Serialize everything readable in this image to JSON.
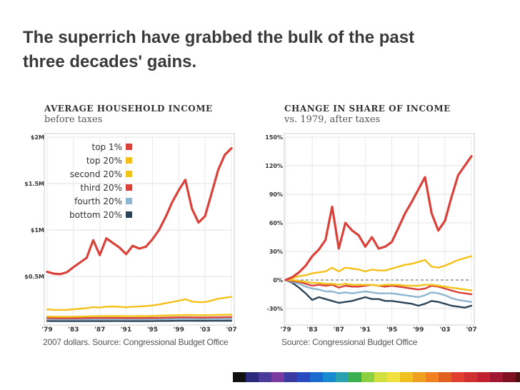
{
  "slide": {
    "title_line1": "The superrich have grabbed the bulk of the past",
    "title_line2": "three decades' gains."
  },
  "chart_data": [
    {
      "type": "line",
      "title": "AVERAGE HOUSEHOLD INCOME",
      "subtitle": "before taxes",
      "source": "2007 dollars. Source: Congressional Budget Office",
      "xlim": [
        1979,
        2007
      ],
      "ylim": [
        0,
        2000000
      ],
      "yticks": [
        {
          "value": 2000000,
          "label": "$2M"
        },
        {
          "value": 1500000,
          "label": "$1.5M"
        },
        {
          "value": 1000000,
          "label": "$1M"
        },
        {
          "value": 500000,
          "label": "$0.5M"
        }
      ],
      "xticks": [
        {
          "value": 1979,
          "label": "'79"
        },
        {
          "value": 1983,
          "label": "'83"
        },
        {
          "value": 1987,
          "label": "'87"
        },
        {
          "value": 1991,
          "label": "'91"
        },
        {
          "value": 1995,
          "label": "'95"
        },
        {
          "value": 1999,
          "label": "'99"
        },
        {
          "value": 2003,
          "label": "'03"
        },
        {
          "value": 2007,
          "label": "'07"
        }
      ],
      "grid": true,
      "legend_position": "top-center",
      "x": [
        1979,
        1980,
        1981,
        1982,
        1983,
        1984,
        1985,
        1986,
        1987,
        1988,
        1989,
        1990,
        1991,
        1992,
        1993,
        1994,
        1995,
        1996,
        1997,
        1998,
        1999,
        2000,
        2001,
        2002,
        2003,
        2004,
        2005,
        2006,
        2007
      ],
      "series": [
        {
          "name": "top 1%",
          "color": "#d9423a",
          "values": [
            550000,
            530000,
            525000,
            545000,
            600000,
            650000,
            700000,
            890000,
            730000,
            910000,
            860000,
            810000,
            740000,
            830000,
            800000,
            820000,
            900000,
            1000000,
            1140000,
            1300000,
            1430000,
            1540000,
            1230000,
            1080000,
            1150000,
            1400000,
            1650000,
            1810000,
            1880000
          ]
        },
        {
          "name": "top 20%",
          "color": "#f5c019",
          "values": [
            145000,
            140000,
            139000,
            140000,
            146000,
            152000,
            158000,
            170000,
            165000,
            175000,
            177000,
            172000,
            168000,
            174000,
            176000,
            180000,
            188000,
            198000,
            212000,
            225000,
            238000,
            255000,
            230000,
            222000,
            225000,
            240000,
            260000,
            270000,
            280000
          ]
        },
        {
          "name": "second 20%",
          "color": "#f0c419",
          "values": [
            68000,
            67000,
            66000,
            66000,
            67000,
            68000,
            70000,
            72000,
            72000,
            73000,
            74000,
            73000,
            72000,
            72000,
            73000,
            74000,
            75000,
            77000,
            79000,
            81000,
            83000,
            85000,
            84000,
            83000,
            83000,
            84000,
            86000,
            87000,
            88000
          ]
        },
        {
          "name": "third 20%",
          "color": "#d9423a",
          "values": [
            52000,
            51000,
            50000,
            50000,
            50000,
            51000,
            52000,
            53000,
            53000,
            54000,
            54000,
            53000,
            52000,
            52000,
            52000,
            53000,
            54000,
            55000,
            56000,
            58000,
            59000,
            60000,
            59000,
            58000,
            58000,
            59000,
            60000,
            61000,
            62000
          ]
        },
        {
          "name": "fourth 20%",
          "color": "#8fb6d0",
          "values": [
            38000,
            37000,
            36000,
            36000,
            36000,
            37000,
            37000,
            38000,
            38000,
            38000,
            38000,
            38000,
            37000,
            37000,
            37000,
            38000,
            38000,
            39000,
            40000,
            41000,
            42000,
            42000,
            42000,
            41000,
            41000,
            42000,
            42000,
            43000,
            44000
          ]
        },
        {
          "name": "bottom 20%",
          "color": "#2e4558",
          "values": [
            20000,
            19500,
            19000,
            18500,
            18500,
            18500,
            19000,
            19000,
            19500,
            19500,
            20000,
            20000,
            19500,
            19000,
            19000,
            19500,
            20000,
            20500,
            21000,
            21500,
            22000,
            22500,
            22000,
            21500,
            21500,
            22000,
            22000,
            22500,
            23000
          ]
        }
      ]
    },
    {
      "type": "line",
      "title": "CHANGE IN SHARE OF INCOME",
      "subtitle": "vs. 1979, after taxes",
      "source": "Source: Congressional Budget Office",
      "xlim": [
        1979,
        2007
      ],
      "ylim": [
        -45,
        150
      ],
      "yticks": [
        {
          "value": 150,
          "label": "150%"
        },
        {
          "value": 120,
          "label": "120%"
        },
        {
          "value": 90,
          "label": "90%"
        },
        {
          "value": 60,
          "label": "60%"
        },
        {
          "value": 30,
          "label": "30%"
        },
        {
          "value": 0,
          "label": "0%"
        },
        {
          "value": -30,
          "label": "-30%"
        }
      ],
      "xticks": [
        {
          "value": 1979,
          "label": "'79"
        },
        {
          "value": 1983,
          "label": "'83"
        },
        {
          "value": 1987,
          "label": "'87"
        },
        {
          "value": 1991,
          "label": "'91"
        },
        {
          "value": 1995,
          "label": "'95"
        },
        {
          "value": 1999,
          "label": "'99"
        },
        {
          "value": 2003,
          "label": "'03"
        },
        {
          "value": 2007,
          "label": "'07"
        }
      ],
      "grid": true,
      "zero_line": "dashed",
      "x": [
        1979,
        1980,
        1981,
        1982,
        1983,
        1984,
        1985,
        1986,
        1987,
        1988,
        1989,
        1990,
        1991,
        1992,
        1993,
        1994,
        1995,
        1996,
        1997,
        1998,
        1999,
        2000,
        2001,
        2002,
        2003,
        2004,
        2005,
        2006,
        2007
      ],
      "series": [
        {
          "name": "top 1%",
          "color": "#d9423a",
          "values": [
            0,
            3,
            8,
            15,
            25,
            32,
            42,
            77,
            33,
            60,
            52,
            47,
            35,
            45,
            33,
            35,
            40,
            55,
            70,
            82,
            95,
            108,
            70,
            52,
            62,
            87,
            110,
            120,
            130
          ]
        },
        {
          "name": "top 20%",
          "color": "#f5c019",
          "values": [
            0,
            2,
            4,
            5,
            7,
            8,
            9,
            13,
            9,
            13,
            12,
            11,
            9,
            11,
            10,
            10,
            12,
            14,
            16,
            17,
            19,
            21,
            14,
            13,
            15,
            18,
            21,
            23,
            25
          ]
        },
        {
          "name": "second 20%",
          "color": "#f0c419",
          "values": [
            0,
            0,
            -1,
            -2,
            -3,
            -3,
            -4,
            -4,
            -5,
            -4,
            -5,
            -5,
            -5,
            -5,
            -6,
            -5,
            -5,
            -5,
            -6,
            -6,
            -6,
            -5,
            -5,
            -6,
            -7,
            -8,
            -9,
            -10,
            -11
          ]
        },
        {
          "name": "third 20%",
          "color": "#d9423a",
          "values": [
            0,
            -1,
            -2,
            -4,
            -6,
            -5,
            -6,
            -5,
            -8,
            -6,
            -7,
            -7,
            -6,
            -5,
            -6,
            -7,
            -6,
            -7,
            -8,
            -9,
            -10,
            -9,
            -6,
            -7,
            -9,
            -11,
            -13,
            -14,
            -15
          ]
        },
        {
          "name": "fourth 20%",
          "color": "#8fb6d0",
          "values": [
            0,
            -2,
            -4,
            -7,
            -9,
            -10,
            -12,
            -12,
            -14,
            -13,
            -14,
            -13,
            -12,
            -13,
            -14,
            -14,
            -14,
            -15,
            -16,
            -17,
            -18,
            -16,
            -13,
            -14,
            -16,
            -19,
            -21,
            -22,
            -23
          ]
        },
        {
          "name": "bottom 20%",
          "color": "#2e4558",
          "values": [
            0,
            -3,
            -8,
            -14,
            -21,
            -18,
            -20,
            -22,
            -24,
            -23,
            -22,
            -20,
            -18,
            -20,
            -20,
            -22,
            -22,
            -23,
            -24,
            -25,
            -27,
            -25,
            -22,
            -23,
            -25,
            -27,
            -28,
            -29,
            -27
          ]
        }
      ]
    }
  ],
  "legend": [
    {
      "label": "top 1%",
      "color": "#d9423a"
    },
    {
      "label": "top 20%",
      "color": "#f5c019"
    },
    {
      "label": "second 20%",
      "color": "#f0c419"
    },
    {
      "label": "third 20%",
      "color": "#d9423a"
    },
    {
      "label": "fourth 20%",
      "color": "#8fb6d0"
    },
    {
      "label": "bottom 20%",
      "color": "#2e4558"
    }
  ],
  "decor": {
    "color_bar": [
      "#111111",
      "#2a2a7a",
      "#4a3a9a",
      "#7a3aa0",
      "#3a3aa0",
      "#2a4ac0",
      "#1a6ad0",
      "#1a8ad0",
      "#2aa0b0",
      "#3ab050",
      "#8ad040",
      "#d0e040",
      "#f0e040",
      "#f0c020",
      "#f0a020",
      "#f08020",
      "#e06020",
      "#e04030",
      "#d03030",
      "#c02030",
      "#a01830",
      "#801020",
      "#501010",
      "#111111"
    ]
  }
}
